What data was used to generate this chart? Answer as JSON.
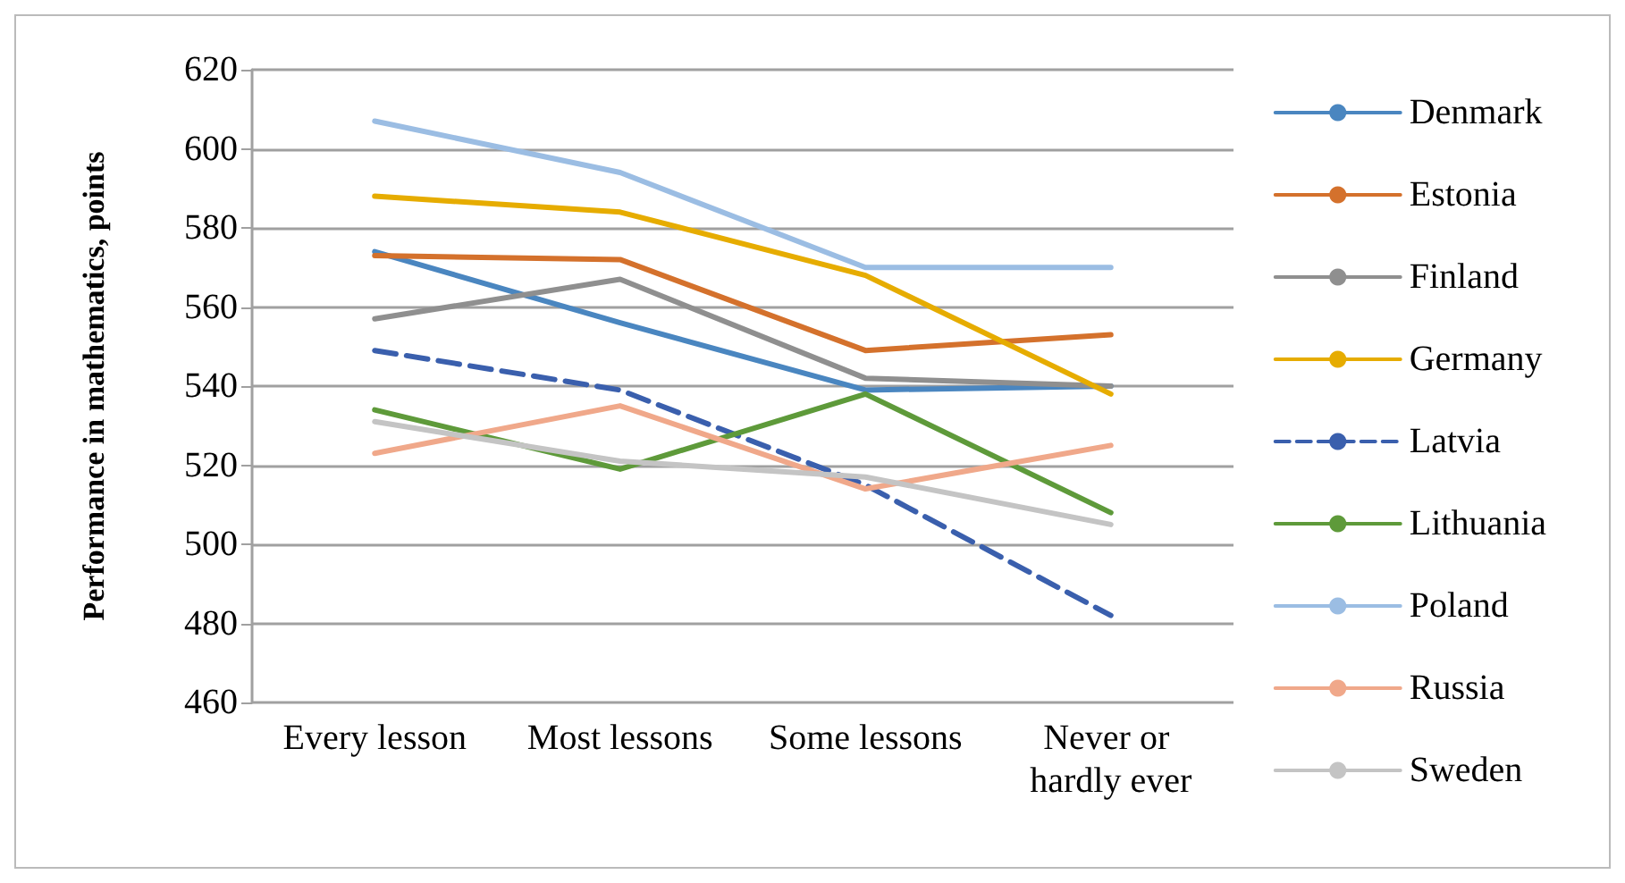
{
  "chart_data": {
    "type": "line",
    "ylabel": "Performance in mathematics, points",
    "categories": [
      "Every lesson",
      "Most lessons",
      "Some lessons",
      "Never or hardly ever"
    ],
    "ylim": [
      460,
      620
    ],
    "yticks": [
      460,
      480,
      500,
      520,
      540,
      560,
      580,
      600,
      620
    ],
    "grid": "y",
    "legend": "right",
    "marker": "none",
    "line_style": "solid",
    "series": [
      {
        "name": "Denmark",
        "color": "#4a86c0",
        "values": [
          574,
          556,
          539,
          540
        ]
      },
      {
        "name": "Estonia",
        "color": "#d4712c",
        "values": [
          573,
          572,
          549,
          553
        ]
      },
      {
        "name": "Finland",
        "color": "#8f8f8f",
        "values": [
          557,
          567,
          542,
          540
        ]
      },
      {
        "name": "Germany",
        "color": "#e6ac00",
        "values": [
          588,
          584,
          568,
          538
        ]
      },
      {
        "name": "Latvia",
        "color": "#3a5fad",
        "values": [
          549,
          539,
          515,
          482
        ],
        "line_style": "dashed"
      },
      {
        "name": "Lithuania",
        "color": "#5e9a3a",
        "values": [
          534,
          519,
          538,
          508
        ]
      },
      {
        "name": "Poland",
        "color": "#9bbde3",
        "values": [
          607,
          594,
          570,
          570
        ]
      },
      {
        "name": "Russia",
        "color": "#f0a88a",
        "values": [
          523,
          535,
          514,
          525
        ]
      },
      {
        "name": "Sweden",
        "color": "#c4c4c4",
        "values": [
          531,
          521,
          517,
          505
        ]
      }
    ]
  }
}
